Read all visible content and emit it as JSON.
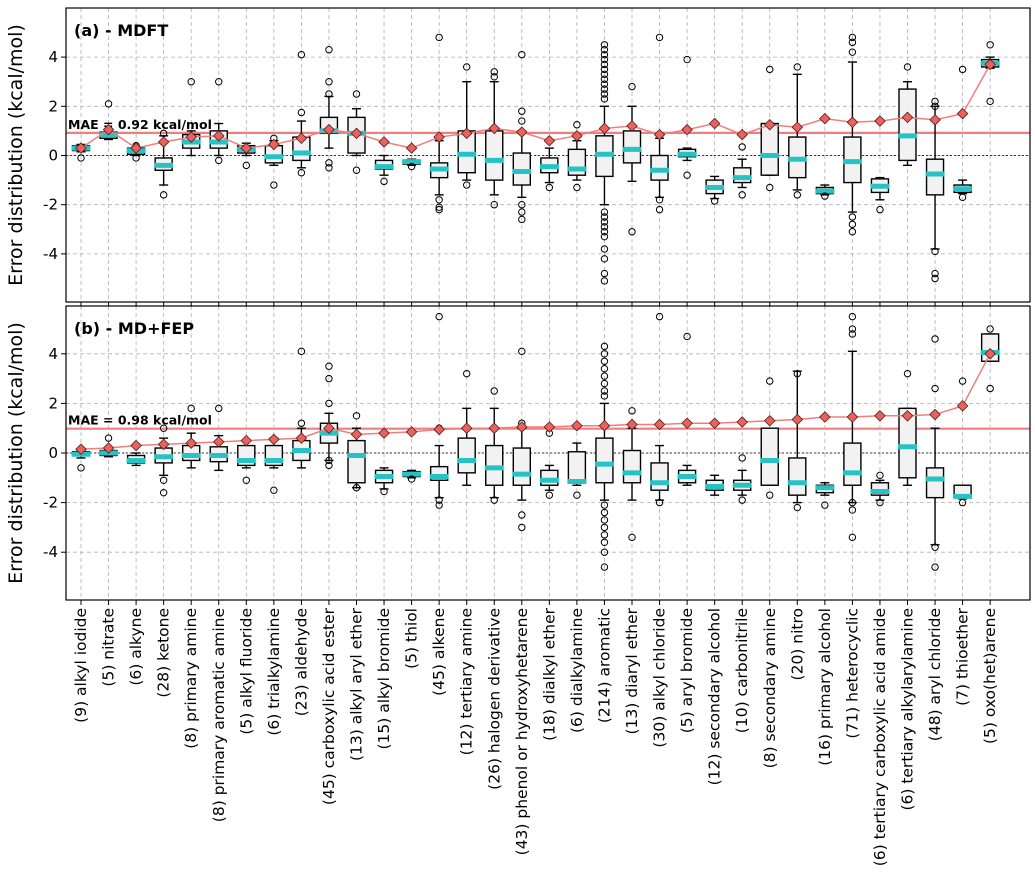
{
  "figure": {
    "ylabel": "Error distribution (kcal/mol)",
    "colors": {
      "median": "#27c2c4",
      "mae": "#f07e7e",
      "diamond": "#e8625e",
      "box_fill": "#f2f2f2"
    }
  },
  "chart_data": [
    {
      "type": "box",
      "title": "(a) - MDFT",
      "ylabel": "Error distribution (kcal/mol)",
      "ylim": [
        -6,
        6
      ],
      "yticks": [
        -4,
        -2,
        0,
        2,
        4
      ],
      "mae_value": 0.92,
      "mae_label": "MAE = 0.92 kcal/mol",
      "categories": [
        "(9) alkyl iodide",
        "(5) nitrate",
        "(6) alkyne",
        "(28) ketone",
        "(8) primary amine",
        "(8) primary aromatic amine",
        "(5) alkyl fluoride",
        "(6) trialkylamine",
        "(23) aldehyde",
        "(45) carboxylic acid ester",
        "(13) alkyl aryl ether",
        "(15) alkyl bromide",
        "(5) thiol",
        "(45) alkene",
        "(12) tertiary amine",
        "(26) halogen derivative",
        "(43) phenol or hydroxyhetarene",
        "(18) dialkyl ether",
        "(6) dialkylamine",
        "(214) aromatic",
        "(13) diaryl ether",
        "(30) alkyl chloride",
        "(5) aryl bromide",
        "(12) secondary alcohol",
        "(10) carbonitrile",
        "(8) secondary amine",
        "(20) nitro",
        "(16) primary alcohol",
        "(71) heterocyclic",
        "(6) tertiary carboxylic acid amide",
        "(6) tertiary alkylarylamine",
        "(48) aryl chloride",
        "(7) thioether",
        "(5) oxo(het)arene"
      ],
      "boxes": [
        {
          "q1": 0.2,
          "med": 0.3,
          "q3": 0.4,
          "wlo": 0.15,
          "whi": 0.45,
          "fliers": [
            -0.1
          ]
        },
        {
          "q1": 0.7,
          "med": 0.85,
          "q3": 0.95,
          "wlo": 0.65,
          "whi": 1.0,
          "fliers": [
            2.1
          ]
        },
        {
          "q1": 0.05,
          "med": 0.2,
          "q3": 0.3,
          "wlo": 0.0,
          "whi": 0.35,
          "fliers": [
            -0.1,
            0.4
          ]
        },
        {
          "q1": -0.6,
          "med": -0.4,
          "q3": -0.1,
          "wlo": -1.2,
          "whi": 0.8,
          "fliers": [
            -1.6,
            0.9
          ]
        },
        {
          "q1": 0.3,
          "med": 0.55,
          "q3": 0.85,
          "wlo": 0.0,
          "whi": 1.0,
          "fliers": [
            3.0
          ]
        },
        {
          "q1": 0.3,
          "med": 0.55,
          "q3": 1.0,
          "wlo": 0.0,
          "whi": 1.3,
          "fliers": [
            3.0,
            -0.2
          ]
        },
        {
          "q1": 0.1,
          "med": 0.25,
          "q3": 0.4,
          "wlo": 0.0,
          "whi": 0.5,
          "fliers": [
            -0.4
          ]
        },
        {
          "q1": -0.3,
          "med": -0.05,
          "q3": 0.4,
          "wlo": -0.4,
          "whi": 0.6,
          "fliers": [
            -1.2,
            0.7
          ]
        },
        {
          "q1": -0.2,
          "med": 0.1,
          "q3": 0.75,
          "wlo": -0.5,
          "whi": 1.4,
          "fliers": [
            4.1,
            1.75,
            -0.7
          ]
        },
        {
          "q1": 0.9,
          "med": 1.0,
          "q3": 1.55,
          "wlo": 0.3,
          "whi": 2.4,
          "fliers": [
            4.3,
            3.0,
            2.5,
            -0.3,
            -0.5
          ]
        },
        {
          "q1": 0.1,
          "med": 0.9,
          "q3": 1.55,
          "wlo": 0.0,
          "whi": 1.9,
          "fliers": [
            2.5,
            -0.6
          ]
        },
        {
          "q1": -0.55,
          "med": -0.45,
          "q3": -0.2,
          "wlo": -0.8,
          "whi": 0.0,
          "fliers": [
            -1.05
          ]
        },
        {
          "q1": -0.35,
          "med": -0.25,
          "q3": -0.2,
          "wlo": -0.4,
          "whi": -0.15,
          "fliers": [
            -0.45
          ]
        },
        {
          "q1": -0.9,
          "med": -0.55,
          "q3": -0.3,
          "wlo": -1.6,
          "whi": 0.6,
          "fliers": [
            4.8,
            -1.8,
            -2.1,
            -2.2
          ]
        },
        {
          "q1": -0.7,
          "med": 0.05,
          "q3": 1.0,
          "wlo": -1.0,
          "whi": 3.0,
          "fliers": [
            3.6,
            -1.2
          ]
        },
        {
          "q1": -1.0,
          "med": -0.2,
          "q3": 1.0,
          "wlo": -1.6,
          "whi": 3.0,
          "fliers": [
            3.4,
            3.2,
            -2.0
          ]
        },
        {
          "q1": -1.2,
          "med": -0.65,
          "q3": 0.1,
          "wlo": -1.7,
          "whi": 1.0,
          "fliers": [
            4.1,
            1.8,
            1.4,
            -2.0,
            -2.3,
            -2.6
          ]
        },
        {
          "q1": -0.7,
          "med": -0.45,
          "q3": -0.1,
          "wlo": -1.1,
          "whi": 0.3,
          "fliers": [
            -1.3
          ]
        },
        {
          "q1": -0.8,
          "med": -0.55,
          "q3": 0.25,
          "wlo": -1.0,
          "whi": 0.6,
          "fliers": [
            1.25,
            -1.3
          ]
        },
        {
          "q1": -0.85,
          "med": 0.05,
          "q3": 0.8,
          "wlo": -2.0,
          "whi": 2.0,
          "fliers": [
            4.5,
            4.3,
            4.1,
            3.9,
            3.7,
            3.5,
            3.3,
            3.1,
            2.9,
            2.7,
            2.5,
            2.3,
            -2.3,
            -2.5,
            -2.7,
            -2.9,
            -3.1,
            -3.3,
            -3.8,
            -4.2,
            -4.8,
            -5.1
          ]
        },
        {
          "q1": -0.3,
          "med": 0.25,
          "q3": 1.0,
          "wlo": -1.05,
          "whi": 2.0,
          "fliers": [
            2.8,
            -3.1
          ]
        },
        {
          "q1": -1.0,
          "med": -0.6,
          "q3": 0.0,
          "wlo": -1.7,
          "whi": 0.7,
          "fliers": [
            4.8,
            -1.8,
            -2.2
          ]
        },
        {
          "q1": -0.05,
          "med": 0.05,
          "q3": 0.25,
          "wlo": -0.2,
          "whi": 0.3,
          "fliers": [
            3.9,
            -0.8
          ]
        },
        {
          "q1": -1.55,
          "med": -1.3,
          "q3": -1.0,
          "wlo": -1.75,
          "whi": -0.85,
          "fliers": [
            -1.85
          ]
        },
        {
          "q1": -1.1,
          "med": -0.9,
          "q3": -0.5,
          "wlo": -1.3,
          "whi": -0.15,
          "fliers": [
            0.35,
            -1.6
          ]
        },
        {
          "q1": -0.8,
          "med": 0.0,
          "q3": 1.3,
          "wlo": -0.8,
          "whi": 1.3,
          "fliers": [
            3.5,
            -1.3
          ]
        },
        {
          "q1": -0.9,
          "med": -0.15,
          "q3": 0.75,
          "wlo": -1.4,
          "whi": 3.3,
          "fliers": [
            3.6,
            -1.6
          ]
        },
        {
          "q1": -1.55,
          "med": -1.45,
          "q3": -1.3,
          "wlo": -1.6,
          "whi": -1.2,
          "fliers": [
            -1.65
          ]
        },
        {
          "q1": -1.1,
          "med": -0.25,
          "q3": 0.75,
          "wlo": -2.3,
          "whi": 3.8,
          "fliers": [
            4.8,
            4.6,
            4.2,
            -2.5,
            -2.8,
            -3.1
          ]
        },
        {
          "q1": -1.5,
          "med": -1.25,
          "q3": -0.95,
          "wlo": -1.8,
          "whi": -0.9,
          "fliers": [
            -2.2
          ]
        },
        {
          "q1": -0.2,
          "med": 0.8,
          "q3": 2.7,
          "wlo": -0.4,
          "whi": 3.0,
          "fliers": [
            3.6
          ]
        },
        {
          "q1": -1.6,
          "med": -0.75,
          "q3": -0.15,
          "wlo": -3.8,
          "whi": 2.0,
          "fliers": [
            2.2,
            2.0,
            -3.9,
            -4.8,
            -5.0
          ]
        },
        {
          "q1": -1.5,
          "med": -1.35,
          "q3": -1.2,
          "wlo": -1.55,
          "whi": -1.0,
          "fliers": [
            3.5,
            -1.7
          ]
        },
        {
          "q1": 3.6,
          "med": 3.75,
          "q3": 3.9,
          "wlo": 3.55,
          "whi": 4.0,
          "fliers": [
            4.5,
            2.2
          ]
        }
      ],
      "mae": [
        0.3,
        1.05,
        0.3,
        0.55,
        0.75,
        0.8,
        0.3,
        0.45,
        0.7,
        1.05,
        0.9,
        0.55,
        0.3,
        0.75,
        0.9,
        1.1,
        0.95,
        0.6,
        0.8,
        1.1,
        1.2,
        0.85,
        1.05,
        1.3,
        0.85,
        1.25,
        1.15,
        1.5,
        1.35,
        1.4,
        1.55,
        1.45,
        1.7,
        3.7
      ]
    },
    {
      "type": "box",
      "title": "(b) - MD+FEP",
      "ylabel": "Error distribution (kcal/mol)",
      "ylim": [
        -6,
        6
      ],
      "yticks": [
        -4,
        -2,
        0,
        2,
        4
      ],
      "mae_value": 0.98,
      "mae_label": "MAE = 0.98 kcal/mol",
      "categories": [
        "(9) alkyl iodide",
        "(5) nitrate",
        "(6) alkyne",
        "(28) ketone",
        "(8) primary amine",
        "(8) primary aromatic amine",
        "(5) alkyl fluoride",
        "(6) trialkylamine",
        "(23) aldehyde",
        "(45) carboxylic acid ester",
        "(13) alkyl aryl ether",
        "(15) alkyl bromide",
        "(5) thiol",
        "(45) alkene",
        "(12) tertiary amine",
        "(26) halogen derivative",
        "(43) phenol or hydroxyhetarene",
        "(18) dialkyl ether",
        "(6) dialkylamine",
        "(214) aromatic",
        "(13) diaryl ether",
        "(30) alkyl chloride",
        "(5) aryl bromide",
        "(12) secondary alcohol",
        "(10) carbonitrile",
        "(8) secondary amine",
        "(20) nitro",
        "(16) primary alcohol",
        "(71) heterocyclic",
        "(6) tertiary carboxylic acid amide",
        "(6) tertiary alkylarylamine",
        "(48) aryl chloride",
        "(7) thioether",
        "(5) oxo(het)arene"
      ],
      "boxes": [
        {
          "q1": -0.1,
          "med": -0.05,
          "q3": 0.05,
          "wlo": -0.2,
          "whi": 0.1,
          "fliers": [
            -0.6
          ]
        },
        {
          "q1": -0.1,
          "med": 0.0,
          "q3": 0.1,
          "wlo": -0.15,
          "whi": 0.15,
          "fliers": [
            0.6
          ]
        },
        {
          "q1": -0.4,
          "med": -0.3,
          "q3": -0.1,
          "wlo": -0.5,
          "whi": 0.0,
          "fliers": []
        },
        {
          "q1": -0.4,
          "med": -0.15,
          "q3": 0.2,
          "wlo": -0.9,
          "whi": 0.6,
          "fliers": [
            1.0,
            -1.1,
            -1.6
          ]
        },
        {
          "q1": -0.3,
          "med": -0.1,
          "q3": 0.3,
          "wlo": -0.6,
          "whi": 0.8,
          "fliers": [
            1.8
          ]
        },
        {
          "q1": -0.35,
          "med": -0.1,
          "q3": 0.25,
          "wlo": -0.7,
          "whi": 0.7,
          "fliers": [
            1.8
          ]
        },
        {
          "q1": -0.5,
          "med": -0.3,
          "q3": 0.3,
          "wlo": -0.6,
          "whi": 0.5,
          "fliers": [
            -1.1
          ]
        },
        {
          "q1": -0.5,
          "med": -0.3,
          "q3": 0.3,
          "wlo": -0.6,
          "whi": 0.6,
          "fliers": [
            -1.5
          ]
        },
        {
          "q1": -0.3,
          "med": 0.1,
          "q3": 0.5,
          "wlo": -0.6,
          "whi": 1.0,
          "fliers": [
            4.1,
            1.2
          ]
        },
        {
          "q1": 0.4,
          "med": 0.8,
          "q3": 1.2,
          "wlo": -0.3,
          "whi": 1.6,
          "fliers": [
            3.5,
            3.0,
            2.0,
            -0.3,
            -0.5
          ]
        },
        {
          "q1": -1.2,
          "med": -0.1,
          "q3": 0.5,
          "wlo": -1.4,
          "whi": 1.0,
          "fliers": [
            1.5,
            -1.4
          ]
        },
        {
          "q1": -1.2,
          "med": -0.95,
          "q3": -0.7,
          "wlo": -1.45,
          "whi": -0.6,
          "fliers": [
            -1.55
          ]
        },
        {
          "q1": -0.95,
          "med": -0.85,
          "q3": -0.75,
          "wlo": -1.0,
          "whi": -0.7,
          "fliers": [
            -1.05
          ]
        },
        {
          "q1": -1.1,
          "med": -0.95,
          "q3": -0.55,
          "wlo": -1.8,
          "whi": 0.3,
          "fliers": [
            5.5,
            1.0,
            -1.9,
            -2.1
          ]
        },
        {
          "q1": -0.8,
          "med": -0.3,
          "q3": 0.6,
          "wlo": -1.3,
          "whi": 1.8,
          "fliers": [
            3.2
          ]
        },
        {
          "q1": -1.3,
          "med": -0.6,
          "q3": 0.3,
          "wlo": -1.8,
          "whi": 1.8,
          "fliers": [
            2.5,
            -1.9
          ]
        },
        {
          "q1": -1.3,
          "med": -0.85,
          "q3": 0.2,
          "wlo": -1.9,
          "whi": 1.0,
          "fliers": [
            4.1,
            1.2,
            -2.5,
            -3.0
          ]
        },
        {
          "q1": -1.3,
          "med": -1.1,
          "q3": -0.7,
          "wlo": -1.5,
          "whi": -0.5,
          "fliers": [
            0.8,
            -1.7
          ]
        },
        {
          "q1": -1.2,
          "med": -1.15,
          "q3": 0.05,
          "wlo": -1.3,
          "whi": 0.4,
          "fliers": [
            -1.7
          ]
        },
        {
          "q1": -1.2,
          "med": -0.45,
          "q3": 0.6,
          "wlo": -1.9,
          "whi": 2.0,
          "fliers": [
            4.3,
            4.0,
            3.7,
            3.4,
            3.1,
            2.8,
            2.5,
            2.3,
            -2.1,
            -2.4,
            -2.7,
            -3.0,
            -3.3,
            -3.6,
            -4.0,
            -4.6
          ]
        },
        {
          "q1": -1.2,
          "med": -0.8,
          "q3": 0.1,
          "wlo": -1.9,
          "whi": 1.0,
          "fliers": [
            1.7,
            -3.4
          ]
        },
        {
          "q1": -1.5,
          "med": -1.2,
          "q3": -0.4,
          "wlo": -1.9,
          "whi": 0.3,
          "fliers": [
            5.5,
            -2.0
          ]
        },
        {
          "q1": -1.2,
          "med": -0.95,
          "q3": -0.7,
          "wlo": -1.3,
          "whi": -0.5,
          "fliers": [
            4.7
          ]
        },
        {
          "q1": -1.5,
          "med": -1.35,
          "q3": -1.1,
          "wlo": -1.7,
          "whi": -0.9,
          "fliers": []
        },
        {
          "q1": -1.5,
          "med": -1.3,
          "q3": -1.1,
          "wlo": -1.7,
          "whi": -0.7,
          "fliers": [
            -0.2,
            -1.9
          ]
        },
        {
          "q1": -1.3,
          "med": -0.3,
          "q3": 1.0,
          "wlo": -1.3,
          "whi": 1.0,
          "fliers": [
            2.9,
            -1.7
          ]
        },
        {
          "q1": -1.7,
          "med": -1.2,
          "q3": -0.2,
          "wlo": -2.0,
          "whi": 3.3,
          "fliers": [
            3.2,
            -2.2
          ]
        },
        {
          "q1": -1.6,
          "med": -1.4,
          "q3": -1.3,
          "wlo": -1.7,
          "whi": -1.2,
          "fliers": [
            -2.1
          ]
        },
        {
          "q1": -1.3,
          "med": -0.8,
          "q3": 0.4,
          "wlo": -2.0,
          "whi": 4.1,
          "fliers": [
            5.5,
            5.0,
            4.8,
            -2.0,
            -2.3,
            -3.4
          ]
        },
        {
          "q1": -1.7,
          "med": -1.55,
          "q3": -1.2,
          "wlo": -1.9,
          "whi": -1.1,
          "fliers": [
            -0.9,
            -2.0
          ]
        },
        {
          "q1": -1.0,
          "med": 0.25,
          "q3": 1.8,
          "wlo": -1.3,
          "whi": 1.8,
          "fliers": [
            3.2
          ]
        },
        {
          "q1": -1.8,
          "med": -1.05,
          "q3": -0.6,
          "wlo": -3.7,
          "whi": 1.0,
          "fliers": [
            4.6,
            2.6,
            -3.8,
            -4.6
          ]
        },
        {
          "q1": -1.8,
          "med": -1.75,
          "q3": -1.3,
          "wlo": -1.85,
          "whi": -1.3,
          "fliers": [
            2.9,
            -2.0
          ]
        },
        {
          "q1": 3.7,
          "med": 4.05,
          "q3": 4.8,
          "wlo": 3.7,
          "whi": 4.8,
          "fliers": [
            5.0,
            2.6
          ]
        }
      ],
      "mae": [
        0.15,
        0.2,
        0.3,
        0.35,
        0.4,
        0.45,
        0.5,
        0.55,
        0.6,
        1.0,
        0.75,
        0.8,
        0.85,
        0.95,
        1.0,
        1.0,
        1.05,
        1.05,
        1.1,
        1.1,
        1.15,
        1.15,
        1.2,
        1.2,
        1.25,
        1.3,
        1.35,
        1.45,
        1.45,
        1.5,
        1.5,
        1.55,
        1.9,
        4.0
      ]
    }
  ]
}
